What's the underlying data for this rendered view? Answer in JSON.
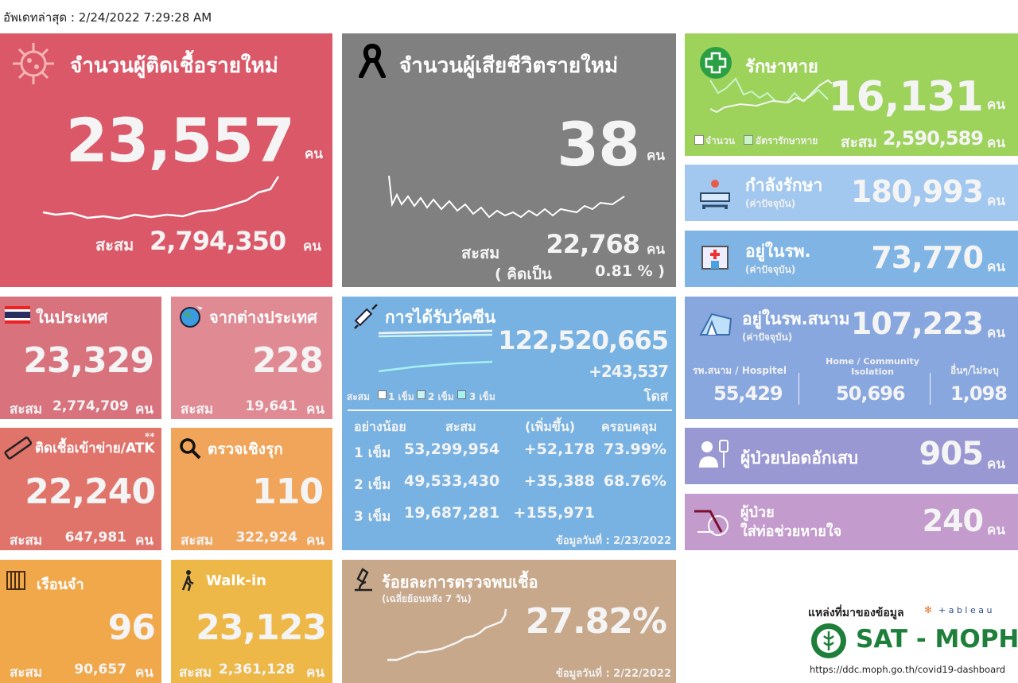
{
  "updated": "อัพเดทล่าสุด : 2/24/2022 7:29:28 AM",
  "common": {
    "unit": "คน",
    "cumulative": "สะสม",
    "current": "(ค่าปัจจุบัน)"
  },
  "new_cases": {
    "title": "จำนวนผู้ติดเชื้อรายใหม่",
    "value": "23,557",
    "cumulative": "2,794,350",
    "color": "#da5868",
    "icon": "virus-icon"
  },
  "deaths": {
    "title": "จำนวนผู้เสียชีวิตรายใหม่",
    "value": "38",
    "cumulative": "22,768",
    "rate_label": "( คิดเป็น",
    "rate_value": "0.81 % )",
    "color": "#808080",
    "icon": "black-ribbon-icon"
  },
  "recovered": {
    "title": "รักษาหาย",
    "value": "16,131",
    "cumulative": "2,590,589",
    "legend": [
      "จำนวน",
      "อัตรารักษาหาย"
    ],
    "color": "#9dd25b",
    "icon": "green-cross-icon"
  },
  "treating": {
    "title": "กำลังรักษา",
    "value": "180,993",
    "color": "#a3c8ef",
    "icon": "hospital-bed-icon"
  },
  "in_hospital": {
    "title": "อยู่ในรพ.",
    "value": "73,770",
    "color": "#80b4e4",
    "icon": "hospital-building-icon"
  },
  "domestic": {
    "title": "ในประเทศ",
    "value": "23,329",
    "cumulative": "2,774,709",
    "color": "#d8737e",
    "icon": "thai-flag-icon"
  },
  "foreign": {
    "title": "จากต่างประเทศ",
    "value": "228",
    "cumulative": "19,641",
    "color": "#e08a94",
    "icon": "globe-plane-icon"
  },
  "atk": {
    "title": "ติดเชื้อเข้าข่าย/ATK",
    "note": "**",
    "value": "22,240",
    "cumulative": "647,981",
    "color": "#e0746b",
    "icon": "atk-test-icon"
  },
  "proactive": {
    "title": "ตรวจเชิงรุก",
    "value": "110",
    "cumulative": "322,924",
    "color": "#f0a55b",
    "icon": "magnifier-icon"
  },
  "prison": {
    "title": "เรือนจำ",
    "value": "96",
    "cumulative": "90,657",
    "color": "#f0a84a",
    "icon": "prison-bars-icon"
  },
  "walkin": {
    "title": "Walk-in",
    "value": "23,123",
    "cumulative": "2,361,128",
    "color": "#edb847",
    "icon": "walking-person-icon"
  },
  "vaccine": {
    "title": "การได้รับวัคซีน",
    "total": "122,520,665",
    "daily": "+243,537",
    "unit": "โดส",
    "legend": [
      "1 เข็ม",
      "2 เข็ม",
      "3 เข็ม"
    ],
    "headers": [
      "อย่างน้อย",
      "สะสม",
      "(เพิ่มขึ้น)",
      "ครอบคลุม"
    ],
    "rows": [
      {
        "dose": "1 เข็ม",
        "cumulative": "53,299,954",
        "increase": "+52,178",
        "coverage": "73.99%"
      },
      {
        "dose": "2 เข็ม",
        "cumulative": "49,533,430",
        "increase": "+35,388",
        "coverage": "68.76%"
      },
      {
        "dose": "3 เข็ม",
        "cumulative": "19,687,281",
        "increase": "+155,971",
        "coverage": ""
      }
    ],
    "data_date": "ข้อมูลวันที่ : 2/23/2022",
    "color": "#78b2e3",
    "icon": "syringe-icon"
  },
  "field_hospital": {
    "title": "อยู่ในรพ.สนาม",
    "value": "107,223",
    "breakdown": [
      {
        "label": "รพ.สนาม / Hospitel",
        "value": "55,429"
      },
      {
        "label": "Home / Community Isolation",
        "value": "50,696"
      },
      {
        "label": "อื่นๆ/ไม่ระบุ",
        "value": "1,098"
      }
    ],
    "color": "#88a7df",
    "icon": "tent-icon"
  },
  "pneumonia": {
    "title": "ผู้ป่วยปอดอักเสบ",
    "value": "905",
    "color": "#9a98d2",
    "icon": "patient-iv-icon"
  },
  "ventilator": {
    "title1": "ผู้ป่วย",
    "title2": "ใส่ท่อช่วยหายใจ",
    "value": "240",
    "color": "#c39bcd",
    "icon": "ventilator-tube-icon"
  },
  "positivity": {
    "title": "ร้อยละการตรวจพบเชื้อ",
    "subtitle": "(เฉลี่ยย้อนหลัง 7 วัน)",
    "value": "27.82%",
    "data_date": "ข้อมูลวันที่ : 2/22/2022",
    "color": "#c8a88b",
    "icon": "microscope-icon"
  },
  "source": {
    "label": "แหล่งที่มาของข้อมูล",
    "tableau": "+ a b l e a u",
    "org": "SAT - MOPH",
    "url": "https://ddc.moph.go.th/covid19-dashboard",
    "org_color": "#1e7f3a"
  }
}
